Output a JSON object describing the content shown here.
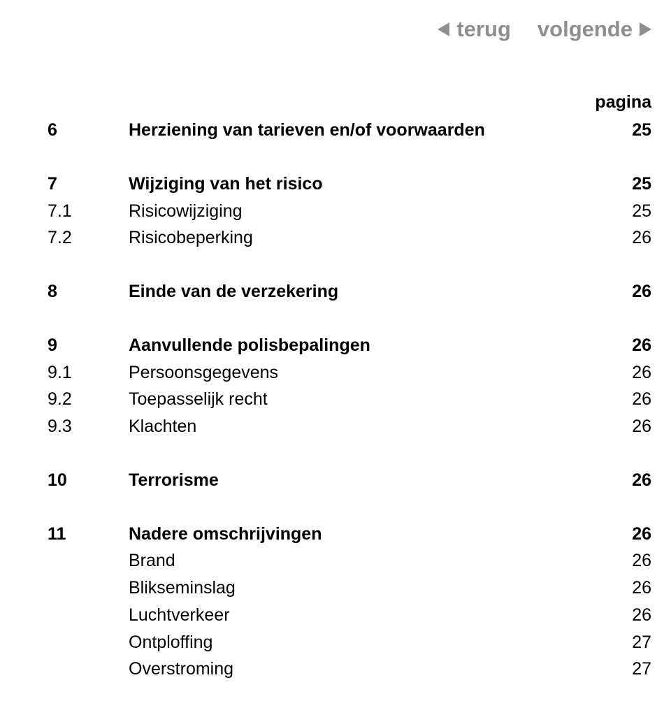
{
  "nav": {
    "back_label": "terug",
    "next_label": "volgende",
    "nav_color": "#8d8e90"
  },
  "header_label": "pagina",
  "rows": [
    {
      "num": "6",
      "title": "Herziening van tarieven en/of voorwaarden",
      "page": "25",
      "bold": true,
      "gap_before": false
    },
    {
      "num": "7",
      "title": "Wijziging van het risico",
      "page": "25",
      "bold": true,
      "gap_before": true
    },
    {
      "num": "7.1",
      "title": "Risicowijziging",
      "page": "25",
      "bold": false,
      "gap_before": false
    },
    {
      "num": "7.2",
      "title": "Risicobeperking",
      "page": "26",
      "bold": false,
      "gap_before": false
    },
    {
      "num": "8",
      "title": "Einde van de verzekering",
      "page": "26",
      "bold": true,
      "gap_before": true
    },
    {
      "num": "9",
      "title": "Aanvullende polisbepalingen",
      "page": "26",
      "bold": true,
      "gap_before": true
    },
    {
      "num": "9.1",
      "title": "Persoonsgegevens",
      "page": "26",
      "bold": false,
      "gap_before": false
    },
    {
      "num": "9.2",
      "title": "Toepasselijk recht",
      "page": "26",
      "bold": false,
      "gap_before": false
    },
    {
      "num": "9.3",
      "title": "Klachten",
      "page": "26",
      "bold": false,
      "gap_before": false
    },
    {
      "num": "10",
      "title": "Terrorisme",
      "page": "26",
      "bold": true,
      "gap_before": true
    },
    {
      "num": "11",
      "title": "Nadere omschrijvingen",
      "page": "26",
      "bold": true,
      "gap_before": true
    },
    {
      "num": "",
      "title": "Brand",
      "page": "26",
      "bold": false,
      "gap_before": false
    },
    {
      "num": "",
      "title": "Blikseminslag",
      "page": "26",
      "bold": false,
      "gap_before": false
    },
    {
      "num": "",
      "title": "Luchtverkeer",
      "page": "26",
      "bold": false,
      "gap_before": false
    },
    {
      "num": "",
      "title": "Ontploffing",
      "page": "27",
      "bold": false,
      "gap_before": false
    },
    {
      "num": "",
      "title": "Overstroming",
      "page": "27",
      "bold": false,
      "gap_before": false
    }
  ]
}
